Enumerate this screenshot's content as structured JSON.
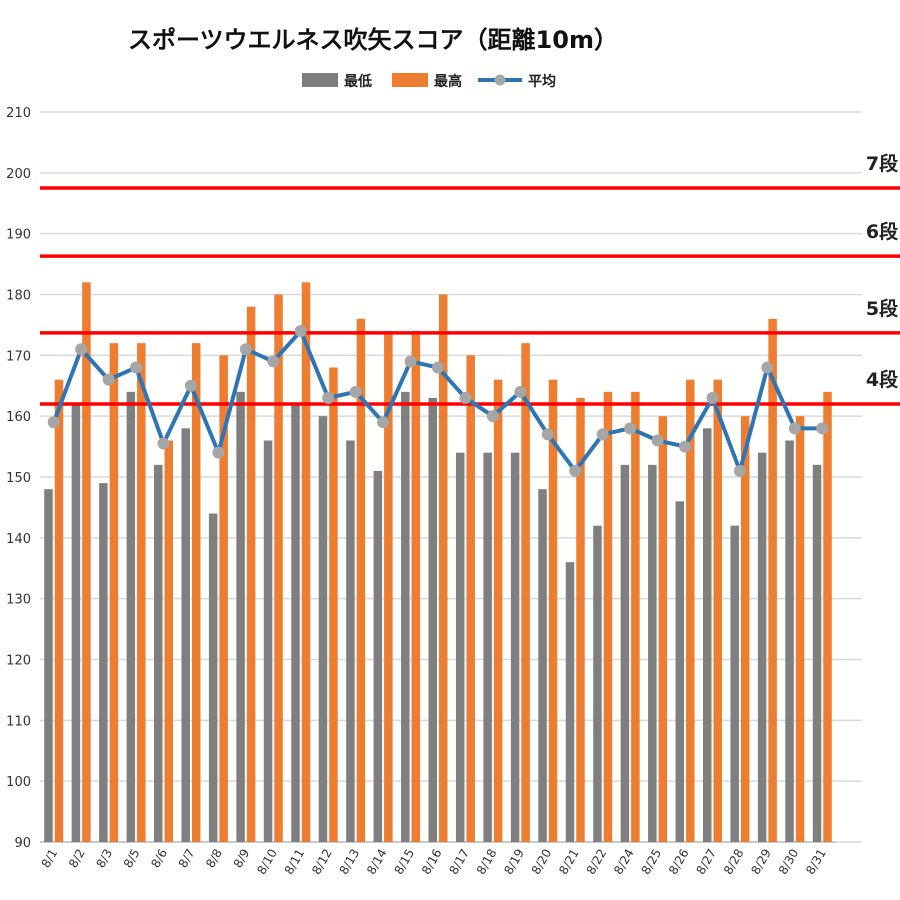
{
  "chart_data": {
    "type": "bar",
    "title": "スポーツウエルネス吹矢スコア（距離10m）",
    "xlabel": "",
    "ylabel": "",
    "ylim": [
      90,
      210
    ],
    "yticks": [
      90,
      100,
      110,
      120,
      130,
      140,
      150,
      160,
      170,
      180,
      190,
      200,
      210
    ],
    "grid": true,
    "legend_position": "top-center",
    "categories": [
      "8/1",
      "8/2",
      "8/3",
      "8/5",
      "8/6",
      "8/7",
      "8/8",
      "8/9",
      "8/10",
      "8/11",
      "8/12",
      "8/13",
      "8/14",
      "8/15",
      "8/16",
      "8/17",
      "8/18",
      "8/19",
      "8/20",
      "8/21",
      "8/22",
      "8/24",
      "8/25",
      "8/26",
      "8/27",
      "8/28",
      "8/29",
      "8/30",
      "8/31"
    ],
    "series": [
      {
        "name": "最低",
        "type": "bar",
        "color": "#7f7f7f",
        "values": [
          148,
          162,
          149,
          164,
          152,
          158,
          144,
          164,
          156,
          162,
          160,
          156,
          151,
          164,
          163,
          154,
          154,
          154,
          148,
          136,
          142,
          152,
          152,
          146,
          158,
          142,
          154,
          156,
          152
        ]
      },
      {
        "name": "最高",
        "type": "bar",
        "color": "#ed7d31",
        "values": [
          166,
          182,
          172,
          172,
          156,
          172,
          170,
          178,
          180,
          182,
          168,
          176,
          174,
          174,
          180,
          170,
          166,
          172,
          166,
          163,
          164,
          164,
          160,
          166,
          166,
          160,
          176,
          160,
          164
        ]
      },
      {
        "name": "平均",
        "type": "line",
        "color": "#2e75b6",
        "marker_color": "#a6a6a6",
        "values": [
          159,
          171,
          166,
          168,
          155.5,
          165,
          154,
          171,
          169,
          174,
          163,
          164,
          159,
          169,
          168,
          163,
          160,
          164,
          157,
          151,
          157,
          158,
          156,
          155,
          163,
          151,
          168,
          158,
          158
        ]
      }
    ],
    "reference_lines": [
      {
        "label": "7段",
        "value": 197.5,
        "color": "#ff0000"
      },
      {
        "label": "6段",
        "value": 186.3,
        "color": "#ff0000"
      },
      {
        "label": "5段",
        "value": 173.7,
        "color": "#ff0000"
      },
      {
        "label": "4段",
        "value": 162,
        "color": "#ff0000"
      }
    ]
  }
}
